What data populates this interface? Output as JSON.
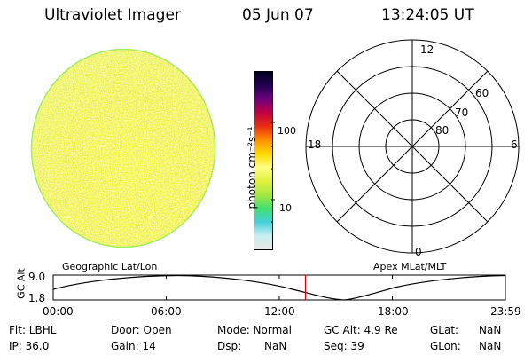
{
  "header": {
    "title": "Ultraviolet Imager",
    "date": "05 Jun 07",
    "time": "13:24:05 UT"
  },
  "colorbar": {
    "label": "photon cm⁻²s⁻¹",
    "ticks": [
      "100",
      "10"
    ],
    "colors": [
      "#e6e6e6",
      "#c8f0f0",
      "#40d0d8",
      "#40e070",
      "#a8e840",
      "#e0f040",
      "#ffff80",
      "#ffd800",
      "#ff9000",
      "#e83010",
      "#c00040",
      "#700080",
      "#200050",
      "#000020"
    ]
  },
  "polar": {
    "lat_labels": [
      "60",
      "70",
      "80"
    ],
    "mlt_labels": {
      "top": "12",
      "left": "18",
      "right": "6",
      "bottom": "0"
    }
  },
  "timeline": {
    "left_label": "Geographic Lat/Lon",
    "right_label": "Apex MLat/MLT",
    "axis_label": "GC Alt",
    "ymax": "9.0",
    "ymin": "1.8",
    "times": [
      "00:00",
      "06:00",
      "12:00",
      "18:00",
      "23:59"
    ],
    "marker_time": "13:24:05"
  },
  "info": {
    "flt": "Flt: LBHL",
    "ip": "IP: 36.0",
    "door": "Door: Open",
    "gain": "Gain: 14",
    "mode": "Mode: Normal",
    "dsp_label": "Dsp:",
    "dsp_value": "NaN",
    "gcalt": "GC Alt: 4.9 Re",
    "seq": "Seq: 39",
    "glat_label": "GLat:",
    "glat_value": "NaN",
    "glon_label": "GLon:",
    "glon_value": "NaN"
  }
}
